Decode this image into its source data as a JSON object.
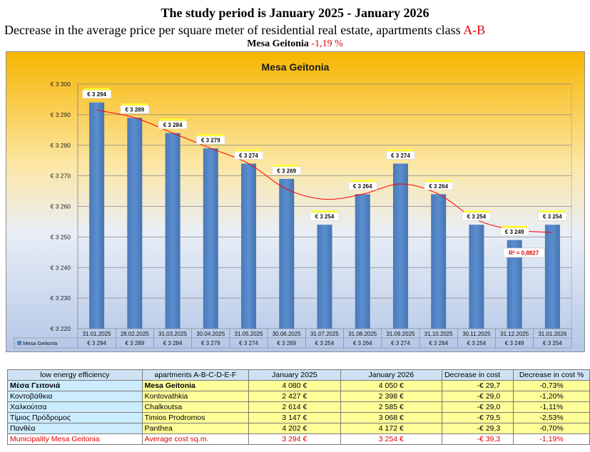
{
  "header": {
    "line1": "The study period is January  2025 - January  2026",
    "line2_text": "Decrease in the average price per square meter of residential real estate, apartments class ",
    "line2_class": "A-B",
    "line3_area": "Mesa Geitonia",
    "line3_change": "-1,19 %"
  },
  "colors": {
    "accent_red": "#e00000",
    "bar": "#4f81bd",
    "trend": "#ff0000",
    "label_box": "#ffff66"
  },
  "chart_data": {
    "type": "bar",
    "title": "Mesa Geitonia",
    "categories": [
      "31.01.2025",
      "28.02.2025",
      "31.03.2025",
      "30.04.2025",
      "31.05.2025",
      "30.06.2025",
      "31.07.2025",
      "31.08.2025",
      "31.09.2025",
      "31.10.2025",
      "30.11.2025",
      "31.12.2025",
      "31.01.2026"
    ],
    "series": [
      {
        "name": "Mesa Geitonia",
        "values": [
          3294,
          3289,
          3284,
          3279,
          3274,
          3269,
          3254,
          3264,
          3274,
          3264,
          3254,
          3249,
          3254
        ]
      }
    ],
    "data_labels": [
      "€ 3 294",
      "€ 3 289",
      "€ 3 284",
      "€ 3 279",
      "€ 3 274",
      "€ 3 269",
      "€ 3 254",
      "€ 3 264",
      "€ 3 274",
      "€ 3 264",
      "€ 3 254",
      "€ 3 249",
      "€ 3 254"
    ],
    "ylim": [
      3220,
      3300
    ],
    "yticks": [
      3220,
      3230,
      3240,
      3250,
      3260,
      3270,
      3280,
      3290,
      3300
    ],
    "ytick_labels": [
      "€ 3 220",
      "€ 3 230",
      "€ 3 240",
      "€ 3 250",
      "€ 3 260",
      "€ 3 270",
      "€ 3 280",
      "€ 3 290",
      "€ 3 300"
    ],
    "trendline": {
      "type": "polynomial",
      "r2_label": "R² = 0,8827"
    },
    "grid": true,
    "legend": "bottom-left data table"
  },
  "table": {
    "headers": [
      "low energy efficiency",
      "apartments A-B-C-D-E-F",
      "January 2025",
      "January 2026",
      "Decrease in cost",
      "Decrease in cost %"
    ],
    "rows": [
      [
        "Μέσα Γειτονιά",
        "Mesa Geitonia",
        "4 080 €",
        "4 050 €",
        "-€ 29,7",
        "-0,73%"
      ],
      [
        "Κοντοβάθκια",
        "Kontovathkia",
        "2 427 €",
        "2 398 €",
        "-€ 29,0",
        "-1,20%"
      ],
      [
        "Χαλκούτσα",
        "Chalkoutsa",
        "2 614 €",
        "2 585 €",
        "-€ 29,0",
        "-1,11%"
      ],
      [
        "Τίμιος Πρόδρομος",
        "Timios Prodromos",
        "3 147 €",
        "3 068 €",
        "-€ 79,5",
        "-2,53%"
      ],
      [
        "Πανθέα",
        "Panthea",
        "4 202 €",
        "4 172 €",
        "-€ 29,3",
        "-0,70%"
      ]
    ],
    "total": [
      "Municipality Mesa Geitonia",
      "Average cost sq.m.",
      "3 294 €",
      "3 254 €",
      "-€ 39,3",
      "-1,19%"
    ]
  }
}
